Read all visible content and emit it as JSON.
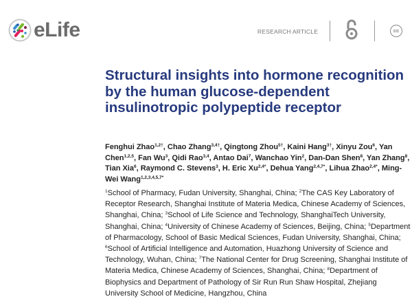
{
  "header": {
    "journal_name": "eLife",
    "article_type": "RESEARCH ARTICLE",
    "open_access_icon": "open-access-lock-icon",
    "license_icon": "creative-commons-icon",
    "license_label": "cc"
  },
  "title": "Structural insights into hormone recognition by the human glucose-dependent insulinotropic polypeptide receptor",
  "authors": [
    {
      "name": "Fenghui Zhao",
      "sup": "1,2†"
    },
    {
      "name": "Chao Zhang",
      "sup": "3,4†"
    },
    {
      "name": "Qingtong Zhou",
      "sup": "5†"
    },
    {
      "name": "Kaini Hang",
      "sup": "3†"
    },
    {
      "name": "Xinyu Zou",
      "sup": "6"
    },
    {
      "name": "Yan Chen",
      "sup": "1,2,5"
    },
    {
      "name": "Fan Wu",
      "sup": "3"
    },
    {
      "name": "Qidi Rao",
      "sup": "3,4"
    },
    {
      "name": "Antao Dai",
      "sup": "7"
    },
    {
      "name": "Wanchao Yin",
      "sup": "2"
    },
    {
      "name": "Dan-Dan Shen",
      "sup": "8"
    },
    {
      "name": "Yan Zhang",
      "sup": "8"
    },
    {
      "name": "Tian Xia",
      "sup": "6"
    },
    {
      "name": "Raymond C. Stevens",
      "sup": "3"
    },
    {
      "name": "H. Eric Xu",
      "sup": "2,4*"
    },
    {
      "name": "Dehua Yang",
      "sup": "2,4,7*"
    },
    {
      "name": "Lihua Zhao",
      "sup": "2,4*"
    },
    {
      "name": "Ming-Wei Wang",
      "sup": "1,2,3,4,5,7*"
    }
  ],
  "affiliations": [
    {
      "num": "1",
      "text": "School of Pharmacy, Fudan University, Shanghai, China"
    },
    {
      "num": "2",
      "text": "The CAS Key Laboratory of Receptor Research, Shanghai Institute of Materia Medica, Chinese Academy of Sciences, Shanghai, China"
    },
    {
      "num": "3",
      "text": "School of Life Science and Technology, ShanghaiTech University, Shanghai, China"
    },
    {
      "num": "4",
      "text": "University of Chinese Academy of Sciences, Beijing, China"
    },
    {
      "num": "5",
      "text": "Department of Pharmacology, School of Basic Medical Sciences, Fudan University, Shanghai, China"
    },
    {
      "num": "6",
      "text": "School of Artificial Intelligence and Automation, Huazhong University of Science and Technology, Wuhan, China"
    },
    {
      "num": "7",
      "text": "The National Center for Drug Screening, Shanghai Institute of Materia Medica, Chinese Academy of Sciences, Shanghai, China"
    },
    {
      "num": "8",
      "text": "Department of Biophysics and Department of Pathology of Sir Run Run Shaw Hospital, Zhejiang University School of Medicine, Hangzhou, China"
    }
  ],
  "colors": {
    "title": "#273a7e",
    "text": "#222222",
    "logo_text": "#6b6b6b"
  }
}
